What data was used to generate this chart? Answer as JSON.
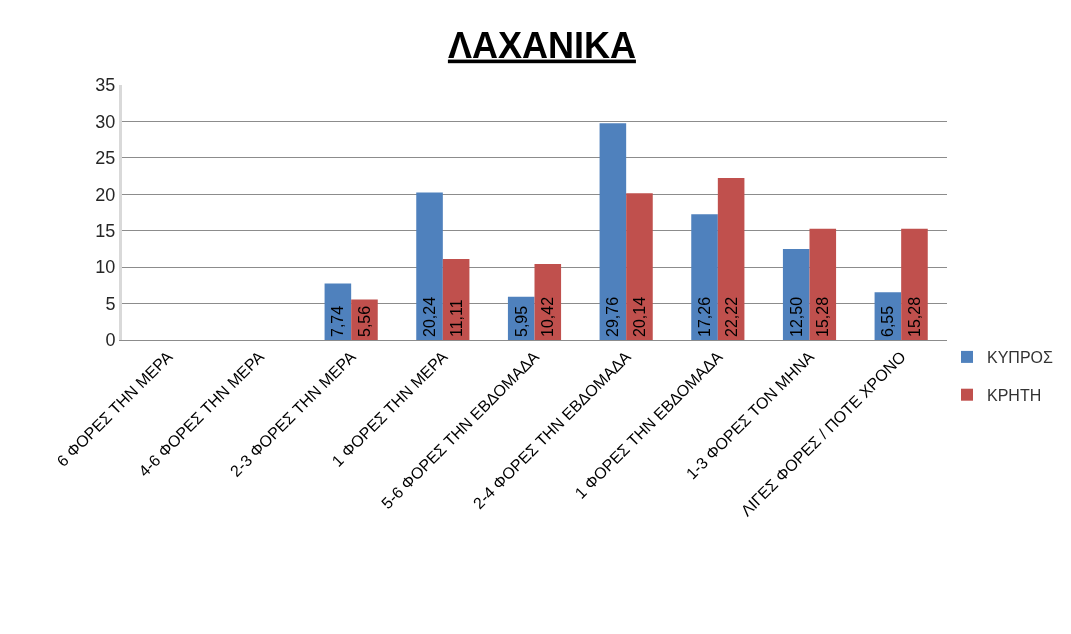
{
  "chart_data": {
    "type": "bar",
    "title": "ΛΑΧΑΝΙΚΑ",
    "categories": [
      "6 ΦΟΡΕΣ ΤΗΝ ΜΕΡΑ",
      "4-6 ΦΟΡΕΣ ΤΗΝ ΜΕΡΑ",
      "2-3 ΦΟΡΕΣ ΤΗΝ ΜΕΡΑ",
      "1 ΦΟΡΕΣ ΤΗΝ ΜΕΡΑ",
      "5-6 ΦΟΡΕΣ ΤΗΝ ΕΒΔΟΜΑΔΑ",
      "2-4 ΦΟΡΕΣ ΤΗΝ ΕΒΔΟΜΑΔΑ",
      "1 ΦΟΡΕΣ ΤΗΝ ΕΒΔΟΜΑΔΑ",
      "1-3 ΦΟΡΕΣ ΤΟΝ ΜΗΝΑ",
      "ΛΙΓΕΣ ΦΟΡΕΣ / ΠΟΤΕ ΧΡΟΝΟ"
    ],
    "series": [
      {
        "name": "ΚΥΠΡΟΣ",
        "color": "#4f81bd",
        "values": [
          null,
          null,
          7.74,
          20.24,
          5.95,
          29.76,
          17.26,
          12.5,
          6.55
        ],
        "value_labels": [
          null,
          null,
          "7,74",
          "20,24",
          "5,95",
          "29,76",
          "17,26",
          "12,50",
          "6,55"
        ]
      },
      {
        "name": "ΚΡΗΤΗ",
        "color": "#c0504d",
        "values": [
          null,
          null,
          5.56,
          11.11,
          10.42,
          20.14,
          22.22,
          15.28,
          15.28
        ],
        "value_labels": [
          null,
          null,
          "5,56",
          "11,11",
          "10,42",
          "20,14",
          "22,22",
          "15,28",
          "15,28"
        ]
      }
    ],
    "ylim": [
      0,
      35
    ],
    "yticks": [
      0,
      5,
      10,
      15,
      20,
      25,
      30,
      35
    ],
    "grid": "y",
    "legend": "bottom right"
  }
}
